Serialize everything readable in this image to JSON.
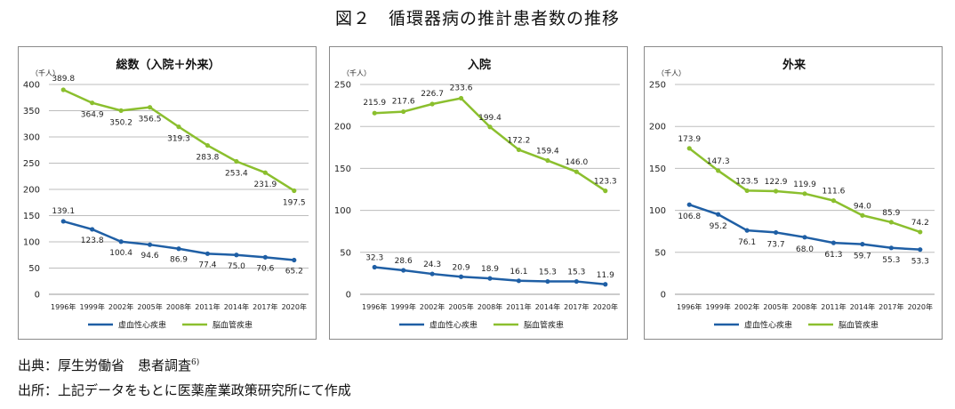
{
  "title": "図２　循環器病の推計患者数の推移",
  "source_lines": [
    {
      "text": "出典：厚生労働省　患者調査",
      "note": "6)"
    },
    {
      "text": "出所：上記データをもとに医薬産業政策研究所にて作成",
      "note": ""
    }
  ],
  "colors": {
    "ischemic": "#1f5fa5",
    "cerebro": "#8bbf2e"
  },
  "chart_data": [
    {
      "type": "line",
      "title": "総数（入院＋外来）",
      "unit_label": "（千人）",
      "categories": [
        "1996年",
        "1999年",
        "2002年",
        "2005年",
        "2008年",
        "2011年",
        "2014年",
        "2017年",
        "2020年"
      ],
      "ylim": [
        0,
        400
      ],
      "yticks": [
        0,
        50,
        100,
        150,
        200,
        250,
        300,
        350,
        400
      ],
      "grid": true,
      "legend": "bottom",
      "series": [
        {
          "name": "虚血性心疾患",
          "color": "#1f5fa5",
          "values": [
            139.1,
            123.8,
            100.4,
            94.6,
            86.9,
            77.4,
            75.0,
            70.6,
            65.2
          ],
          "labels": [
            "139.1",
            "123.8",
            "100.4",
            "94.6",
            "86.9",
            "77.4",
            "75.0",
            "70.6",
            "65.2"
          ]
        },
        {
          "name": "脳血管疾患",
          "color": "#8bbf2e",
          "values": [
            389.8,
            364.9,
            350.2,
            356.5,
            319.3,
            283.8,
            253.4,
            231.9,
            197.5
          ],
          "labels": [
            "389.8",
            "364.9",
            "350.2",
            "356.5",
            "319.3",
            "283.8",
            "253.4",
            "231.9",
            "197.5"
          ]
        }
      ]
    },
    {
      "type": "line",
      "title": "入院",
      "unit_label": "（千人）",
      "categories": [
        "1996年",
        "1999年",
        "2002年",
        "2005年",
        "2008年",
        "2011年",
        "2014年",
        "2017年",
        "2020年"
      ],
      "ylim": [
        0,
        250
      ],
      "yticks": [
        0,
        50,
        100,
        150,
        200,
        250
      ],
      "grid": true,
      "legend": "bottom",
      "series": [
        {
          "name": "虚血性心疾患",
          "color": "#1f5fa5",
          "values": [
            32.3,
            28.6,
            24.3,
            20.9,
            18.9,
            16.1,
            15.3,
            15.3,
            11.9
          ],
          "labels": [
            "32.3",
            "28.6",
            "24.3",
            "20.9",
            "18.9",
            "16.1",
            "15.3",
            "15.3",
            "11.9"
          ]
        },
        {
          "name": "脳血管疾患",
          "color": "#8bbf2e",
          "values": [
            215.9,
            217.6,
            226.7,
            233.6,
            199.4,
            172.2,
            159.4,
            146.0,
            123.3
          ],
          "labels": [
            "215.9",
            "217.6",
            "226.7",
            "233.6",
            "199.4",
            "172.2",
            "159.4",
            "146.0",
            "123.3"
          ]
        }
      ]
    },
    {
      "type": "line",
      "title": "外来",
      "unit_label": "（千人）",
      "categories": [
        "1996年",
        "1999年",
        "2002年",
        "2005年",
        "2008年",
        "2011年",
        "2014年",
        "2017年",
        "2020年"
      ],
      "ylim": [
        0,
        250
      ],
      "yticks": [
        0,
        50,
        100,
        150,
        200,
        250
      ],
      "grid": true,
      "legend": "bottom",
      "series": [
        {
          "name": "虚血性心疾患",
          "color": "#1f5fa5",
          "values": [
            106.8,
            95.2,
            76.1,
            73.7,
            68.0,
            61.3,
            59.7,
            55.3,
            53.3
          ],
          "labels": [
            "106.8",
            "95.2",
            "76.1",
            "73.7",
            "68.0",
            "61.3",
            "59.7",
            "55.3",
            "53.3"
          ]
        },
        {
          "name": "脳血管疾患",
          "color": "#8bbf2e",
          "values": [
            173.9,
            147.3,
            123.5,
            122.9,
            119.9,
            111.6,
            94.0,
            85.9,
            74.2
          ],
          "labels": [
            "173.9",
            "147.3",
            "123.5",
            "122.9",
            "119.9",
            "111.6",
            "94.0",
            "85.9",
            "74.2"
          ]
        }
      ]
    }
  ]
}
